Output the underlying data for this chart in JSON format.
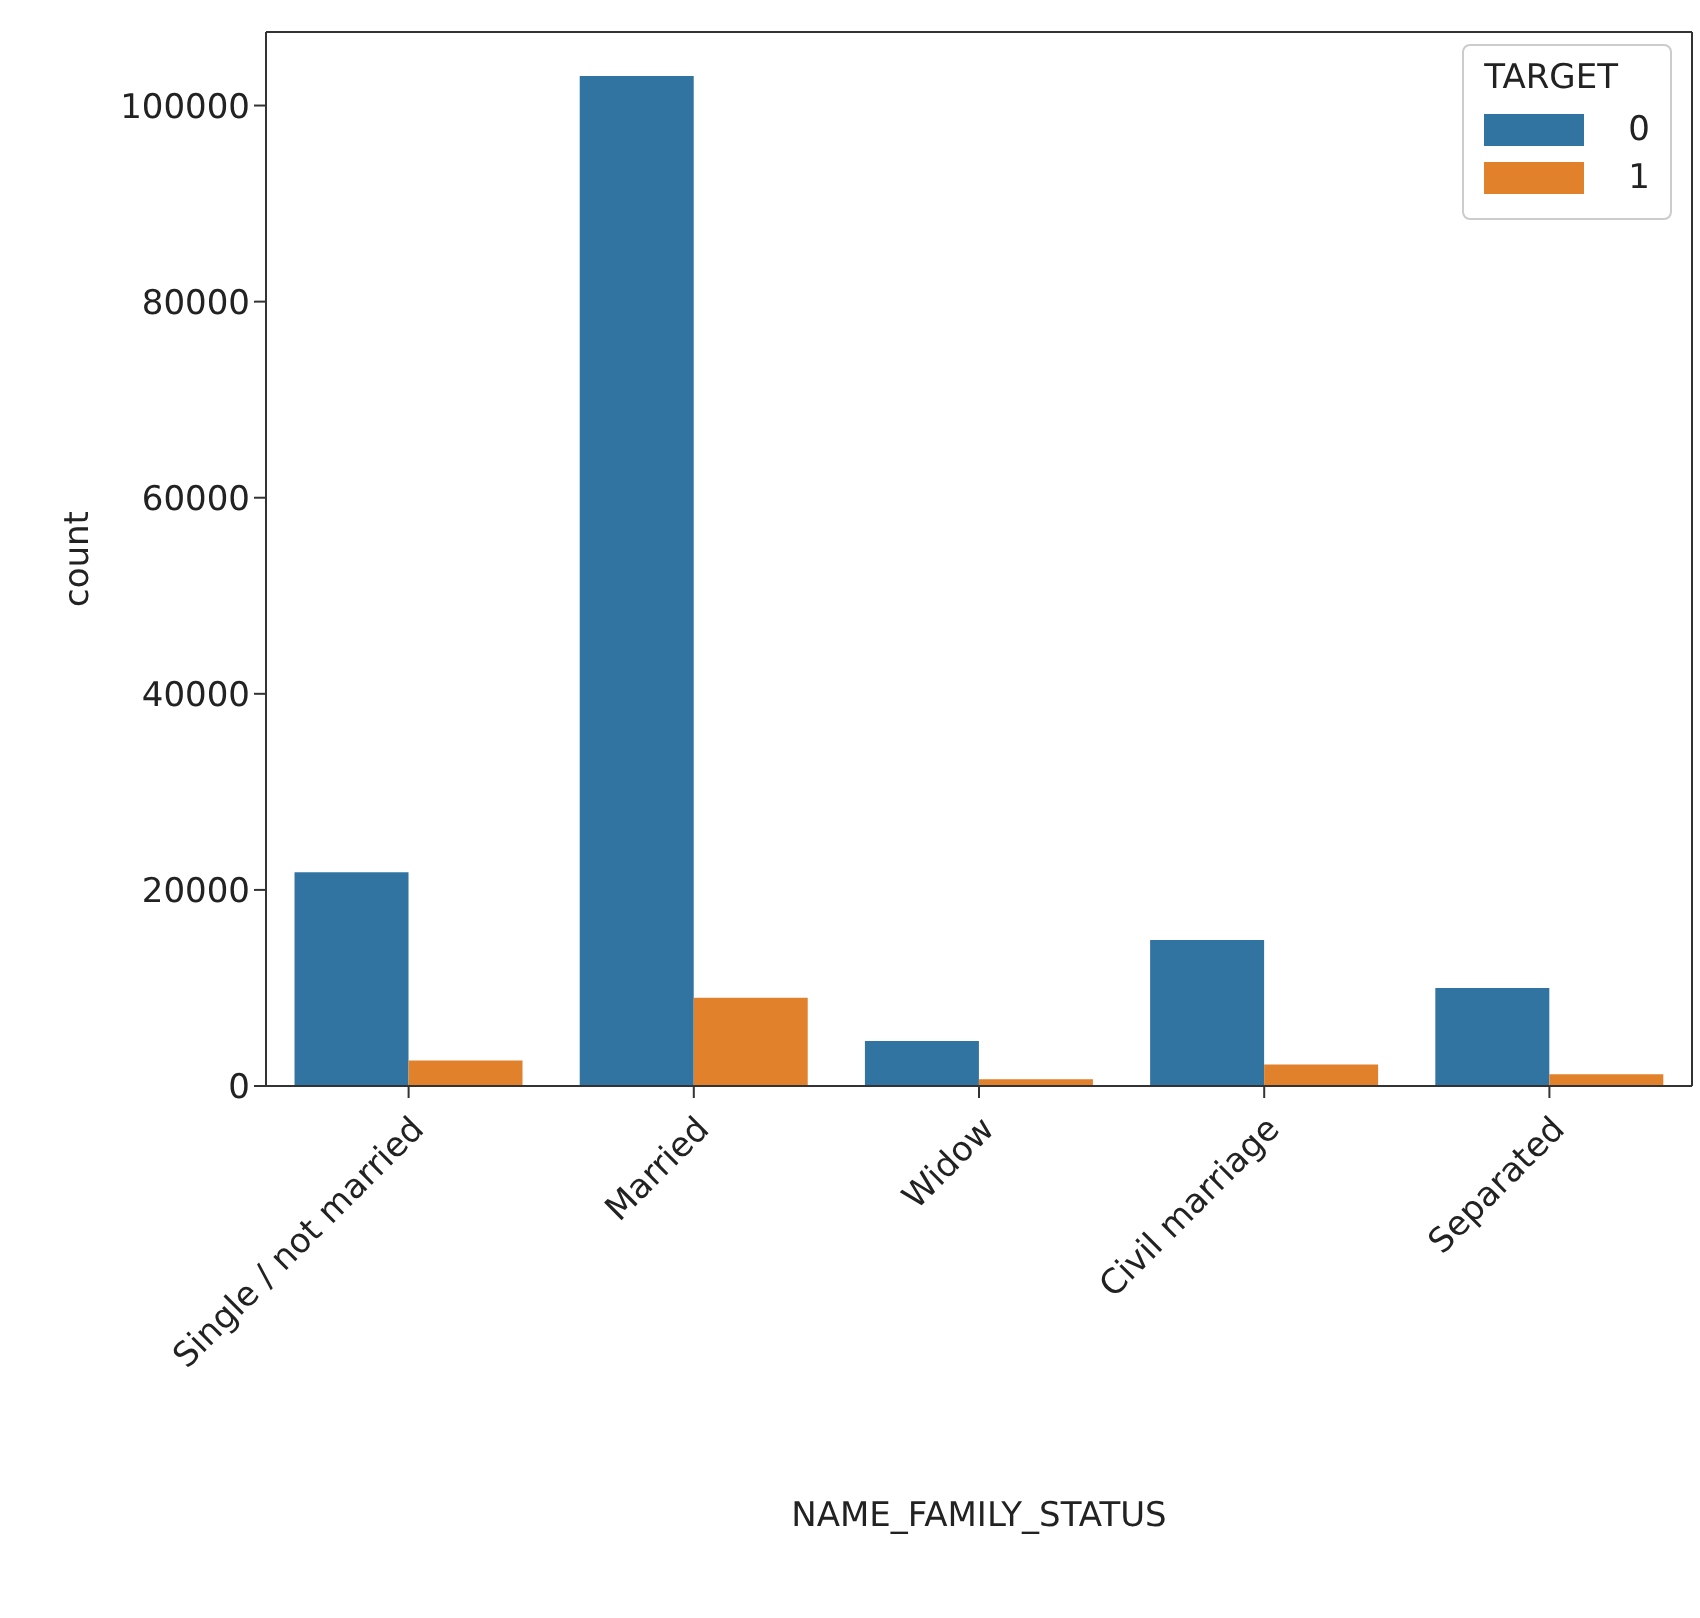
{
  "chart_data": {
    "type": "bar",
    "xlabel": "NAME_FAMILY_STATUS",
    "ylabel": "count",
    "legend_title": "TARGET",
    "categories": [
      "Single / not married",
      "Married",
      "Widow",
      "Civil marriage",
      "Separated"
    ],
    "series": [
      {
        "name": "0",
        "color": "#3274a1",
        "values": [
          21800,
          103000,
          4600,
          14900,
          10000
        ]
      },
      {
        "name": "1",
        "color": "#e1812c",
        "values": [
          2600,
          9000,
          700,
          2200,
          1200
        ]
      }
    ],
    "ylim": [
      0,
      107500
    ],
    "yticks": [
      0,
      20000,
      40000,
      60000,
      80000,
      100000
    ],
    "legend": "top right"
  }
}
